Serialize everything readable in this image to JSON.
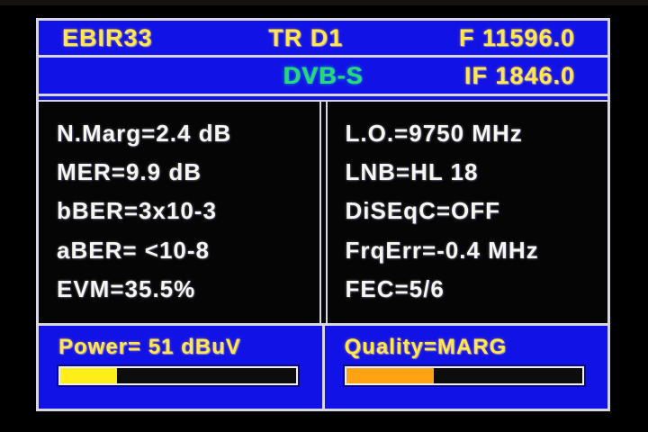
{
  "device": {
    "screen_title": "DVB-S satellite meter measurement screen"
  },
  "colors": {
    "background": "#000000",
    "panel_blue": "#1113e6",
    "border": "#d6d6e4",
    "yellow_text": "#ffe84d",
    "green_text": "#29d973",
    "white_text": "#f5f5f2",
    "power_fill": "#ffee18",
    "quality_fill": "#ffa214",
    "bar_track": "#0d0d0d"
  },
  "header": {
    "name": "EBIR33",
    "transponder": "TR D1",
    "frequency": "F 11596.0",
    "standard": "DVB-S",
    "if_frequency": "IF 1846.0"
  },
  "measurements": {
    "left": [
      "N.Marg=2.4 dB",
      "MER=9.9 dB",
      "bBER=3x10-3",
      "aBER= <10-8",
      "EVM=35.5%"
    ],
    "right": [
      "L.O.=9750 MHz",
      "LNB=HL 18",
      "DiSEqC=OFF",
      "FrqErr=-0.4 MHz",
      "FEC=5/6"
    ]
  },
  "meters": {
    "power": {
      "label": "Power= 51 dBuV",
      "percent": 24,
      "fill_color": "#ffee18"
    },
    "quality": {
      "label": "Quality=MARG",
      "percent": 37,
      "fill_color": "#ffa214"
    }
  }
}
